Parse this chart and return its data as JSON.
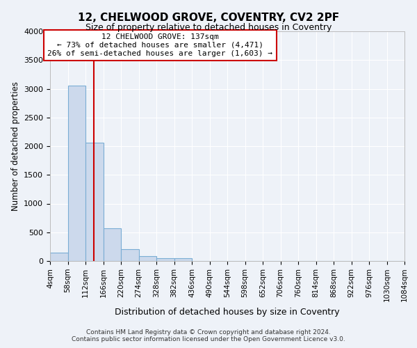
{
  "title": "12, CHELWOOD GROVE, COVENTRY, CV2 2PF",
  "subtitle": "Size of property relative to detached houses in Coventry",
  "xlabel": "Distribution of detached houses by size in Coventry",
  "ylabel": "Number of detached properties",
  "footer_line1": "Contains HM Land Registry data © Crown copyright and database right 2024.",
  "footer_line2": "Contains public sector information licensed under the Open Government Licence v3.0.",
  "bar_color": "#ccd9ec",
  "bar_edge_color": "#7aadd4",
  "background_color": "#eef2f8",
  "grid_color": "#ffffff",
  "vline_color": "#cc0000",
  "vline_x": 137,
  "annotation_text": "12 CHELWOOD GROVE: 137sqm\n← 73% of detached houses are smaller (4,471)\n26% of semi-detached houses are larger (1,603) →",
  "annotation_box_color": "#ffffff",
  "annotation_box_edge": "#cc0000",
  "bin_edges": [
    4,
    58,
    112,
    166,
    220,
    274,
    328,
    382,
    436,
    490,
    544,
    598,
    652,
    706,
    760,
    814,
    868,
    922,
    976,
    1030,
    1084
  ],
  "bin_counts": [
    150,
    3060,
    2060,
    565,
    210,
    80,
    50,
    50,
    0,
    0,
    0,
    0,
    0,
    0,
    0,
    0,
    0,
    0,
    0,
    0
  ],
  "ylim": [
    0,
    4000
  ],
  "yticks": [
    0,
    500,
    1000,
    1500,
    2000,
    2500,
    3000,
    3500,
    4000
  ],
  "tick_labels": [
    "4sqm",
    "58sqm",
    "112sqm",
    "166sqm",
    "220sqm",
    "274sqm",
    "328sqm",
    "382sqm",
    "436sqm",
    "490sqm",
    "544sqm",
    "598sqm",
    "652sqm",
    "706sqm",
    "760sqm",
    "814sqm",
    "868sqm",
    "922sqm",
    "976sqm",
    "1030sqm",
    "1084sqm"
  ]
}
